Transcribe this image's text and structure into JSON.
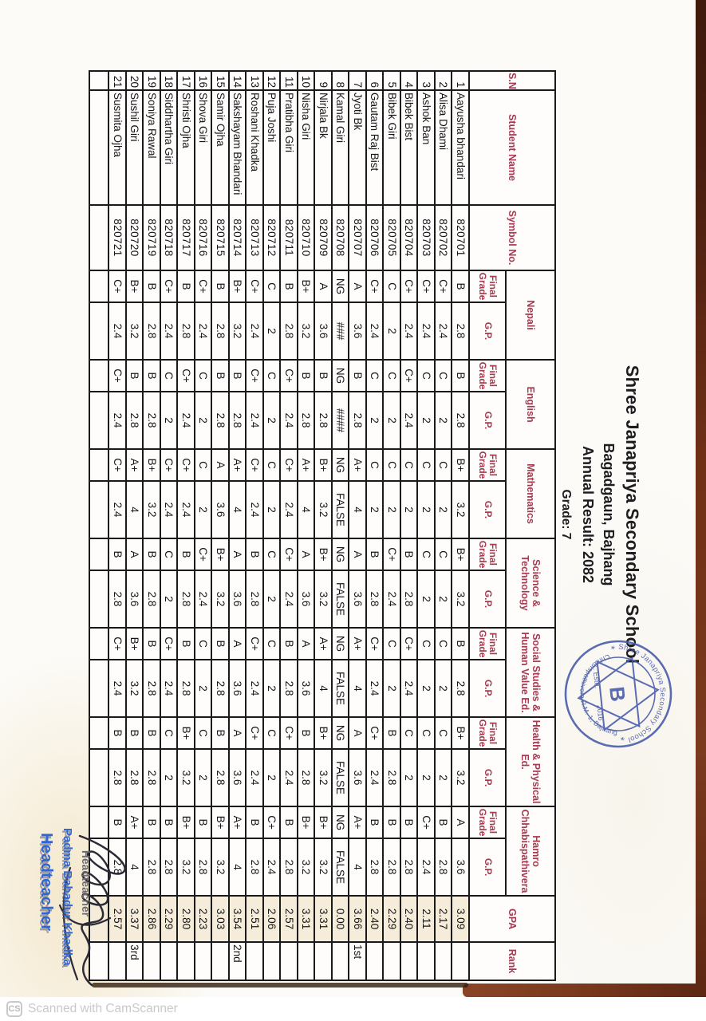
{
  "document": {
    "title": "Shree Janapriya Secondary School",
    "subtitle": "Bagadgaun, Bajhang",
    "result_line": "Annual Result: 2082",
    "grade_line": "Grade: 7",
    "stamp": {
      "top_text": "Shree Janapriya Secondary School",
      "bottom_text": "Chhabispathivera R.M.-1, Bajhang",
      "estd": "Estd.",
      "year": "2016",
      "center_mark": "B",
      "star_left": "*",
      "star_right": "*"
    },
    "signature_block": {
      "ghost_role": "Headteacher",
      "name": "Padma Bahadur Khadka",
      "role": "Headteacher"
    },
    "table": {
      "headers": {
        "sn": "S.N.",
        "student_name": "Student Name",
        "symbol_no": "Symbol No.",
        "final_grade": "Final Grade",
        "gp": "G.P.",
        "gpa": "GPA",
        "rank": "Rank",
        "subjects": [
          "Nepali",
          "English",
          "Mathematics",
          "Science & Technology",
          "Social Studies & Human Value Ed.",
          "Health & Physical Ed.",
          "Hamro Chhabispathivera"
        ]
      },
      "rows": [
        {
          "sn": "1",
          "name": "Aayusha bhandari",
          "symbol": "820701",
          "grades": [
            "B",
            "2.8",
            "B",
            "2.8",
            "B+",
            "3.2",
            "B+",
            "3.2",
            "B",
            "2.8",
            "B+",
            "3.2",
            "A",
            "3.6"
          ],
          "gpa": "3.09",
          "rank": ""
        },
        {
          "sn": "2",
          "name": "Alisa Dhami",
          "symbol": "820702",
          "grades": [
            "C+",
            "2.4",
            "C",
            "2",
            "C",
            "2",
            "C",
            "2",
            "C",
            "2",
            "C",
            "2",
            "B",
            "2.8"
          ],
          "gpa": "2.17",
          "rank": ""
        },
        {
          "sn": "3",
          "name": "Ashok Ban",
          "symbol": "820703",
          "grades": [
            "C+",
            "2.4",
            "C",
            "2",
            "C",
            "2",
            "C",
            "2",
            "C",
            "2",
            "C",
            "2",
            "C+",
            "2.4"
          ],
          "gpa": "2.11",
          "rank": ""
        },
        {
          "sn": "4",
          "name": "Bibek Bist",
          "symbol": "820704",
          "grades": [
            "C+",
            "2.4",
            "C+",
            "2.4",
            "C",
            "2",
            "B",
            "2.8",
            "C+",
            "2.4",
            "C",
            "2",
            "B",
            "2.8"
          ],
          "gpa": "2.40",
          "rank": ""
        },
        {
          "sn": "5",
          "name": "Bibek Giri",
          "symbol": "820705",
          "grades": [
            "C",
            "2",
            "C",
            "2",
            "C",
            "2",
            "C+",
            "2.4",
            "C",
            "2",
            "B",
            "2.8",
            "B",
            "2.8"
          ],
          "gpa": "2.29",
          "rank": ""
        },
        {
          "sn": "6",
          "name": "Gautam Raj Bist",
          "symbol": "820706",
          "grades": [
            "C+",
            "2.4",
            "C",
            "2",
            "C",
            "2",
            "B",
            "2.8",
            "C+",
            "2.4",
            "C+",
            "2.4",
            "B",
            "2.8"
          ],
          "gpa": "2.40",
          "rank": ""
        },
        {
          "sn": "7",
          "name": "Jyoti Bk",
          "symbol": "820707",
          "grades": [
            "A",
            "3.6",
            "B",
            "2.8",
            "A+",
            "4",
            "A",
            "3.6",
            "A+",
            "4",
            "A",
            "3.6",
            "A+",
            "4"
          ],
          "gpa": "3.66",
          "rank": "1st"
        },
        {
          "sn": "8",
          "name": "Kamal  Giri",
          "symbol": "820708",
          "grades": [
            "NG",
            "###",
            "NG",
            "####",
            "NG",
            "FALSE",
            "NG",
            "FALSE",
            "NG",
            "FALSE",
            "NG",
            "FALSE",
            "NG",
            "FALSE"
          ],
          "gpa": "0.00",
          "rank": ""
        },
        {
          "sn": "9",
          "name": "Nirjala  Bk",
          "symbol": "820709",
          "grades": [
            "A",
            "3.6",
            "B",
            "2.8",
            "B+",
            "3.2",
            "B+",
            "3.2",
            "A+",
            "4",
            "B+",
            "3.2",
            "B+",
            "3.2"
          ],
          "gpa": "3.31",
          "rank": ""
        },
        {
          "sn": "10",
          "name": "Nisha  Giri",
          "symbol": "820710",
          "grades": [
            "B+",
            "3.2",
            "B",
            "2.8",
            "A+",
            "4",
            "A",
            "3.6",
            "A",
            "3.6",
            "B",
            "2.8",
            "B+",
            "3.2"
          ],
          "gpa": "3.31",
          "rank": ""
        },
        {
          "sn": "11",
          "name": "Pratibha Giri",
          "symbol": "820711",
          "grades": [
            "B",
            "2.8",
            "C+",
            "2.4",
            "C+",
            "2.4",
            "C+",
            "2.4",
            "B",
            "2.8",
            "C+",
            "2.4",
            "B",
            "2.8"
          ],
          "gpa": "2.57",
          "rank": ""
        },
        {
          "sn": "12",
          "name": "Puja Joshi",
          "symbol": "820712",
          "grades": [
            "C",
            "2",
            "C",
            "2",
            "C",
            "2",
            "C",
            "2",
            "C",
            "2",
            "C",
            "2",
            "C+",
            "2.4"
          ],
          "gpa": "2.06",
          "rank": ""
        },
        {
          "sn": "13",
          "name": "Roshani Khadka",
          "symbol": "820713",
          "grades": [
            "C+",
            "2.4",
            "C+",
            "2.4",
            "C+",
            "2.4",
            "B",
            "2.8",
            "C+",
            "2.4",
            "C+",
            "2.4",
            "B",
            "2.8"
          ],
          "gpa": "2.51",
          "rank": ""
        },
        {
          "sn": "14",
          "name": "Sakshayam Bhandari",
          "symbol": "820714",
          "grades": [
            "B+",
            "3.2",
            "B",
            "2.8",
            "A+",
            "4",
            "A",
            "3.6",
            "A",
            "3.6",
            "A",
            "3.6",
            "A+",
            "4"
          ],
          "gpa": "3.54",
          "rank": "2nd"
        },
        {
          "sn": "15",
          "name": "Samir Ojha",
          "symbol": "820715",
          "grades": [
            "B",
            "2.8",
            "B",
            "2.8",
            "A",
            "3.6",
            "B+",
            "3.2",
            "B",
            "2.8",
            "B",
            "2.8",
            "B+",
            "3.2"
          ],
          "gpa": "3.03",
          "rank": ""
        },
        {
          "sn": "16",
          "name": "Shova Giri",
          "symbol": "820716",
          "grades": [
            "C+",
            "2.4",
            "C",
            "2",
            "C",
            "2",
            "C+",
            "2.4",
            "C",
            "2",
            "C",
            "2",
            "B",
            "2.8"
          ],
          "gpa": "2.23",
          "rank": ""
        },
        {
          "sn": "17",
          "name": "Shristi Ojha",
          "symbol": "820717",
          "grades": [
            "B",
            "2.8",
            "C+",
            "2.4",
            "C+",
            "2.4",
            "B",
            "2.8",
            "B",
            "2.8",
            "B+",
            "3.2",
            "B+",
            "3.2"
          ],
          "gpa": "2.80",
          "rank": ""
        },
        {
          "sn": "18",
          "name": "Siddhartha Giri",
          "symbol": "820718",
          "grades": [
            "C+",
            "2.4",
            "C",
            "2",
            "C+",
            "2.4",
            "C",
            "2",
            "C+",
            "2.4",
            "C",
            "2",
            "B",
            "2.8"
          ],
          "gpa": "2.29",
          "rank": ""
        },
        {
          "sn": "19",
          "name": "Soniya Rawal",
          "symbol": "820719",
          "grades": [
            "B",
            "2.8",
            "B",
            "2.8",
            "B+",
            "3.2",
            "B",
            "2.8",
            "B",
            "2.8",
            "B",
            "2.8",
            "B",
            "2.8"
          ],
          "gpa": "2.86",
          "rank": ""
        },
        {
          "sn": "20",
          "name": "Sushil  Giri",
          "symbol": "820720",
          "grades": [
            "B+",
            "3.2",
            "B",
            "2.8",
            "A+",
            "4",
            "A",
            "3.6",
            "B+",
            "3.2",
            "B",
            "2.8",
            "A+",
            "4"
          ],
          "gpa": "3.37",
          "rank": "3rd"
        },
        {
          "sn": "21",
          "name": "Susmita Ojha",
          "symbol": "820721",
          "grades": [
            "C+",
            "2.4",
            "C+",
            "2.4",
            "C+",
            "2.4",
            "B",
            "2.8",
            "C+",
            "2.4",
            "B",
            "2.8",
            "B",
            "2.8"
          ],
          "gpa": "2.57",
          "rank": ""
        }
      ]
    }
  },
  "watermark": {
    "logo": "CS",
    "text": "Scanned with CamScanner"
  },
  "colors": {
    "header_red": "#a63a50",
    "stamp_blue": "#4458aa",
    "signature_blue": "#3468cf",
    "paper_edge_brown": "#7b3a1e",
    "watermark_gray": "#c9c9c9",
    "gpa_column_cream": "#f5ecd9"
  }
}
